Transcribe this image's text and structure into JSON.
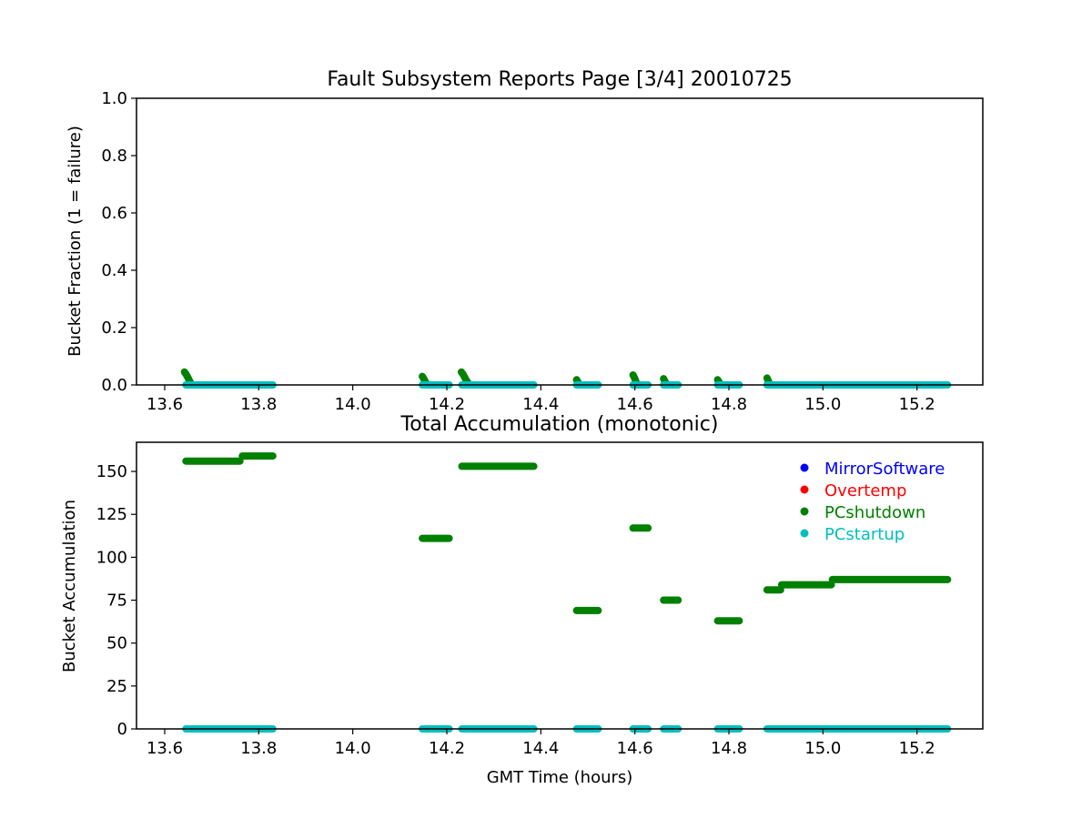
{
  "chart_data": [
    {
      "type": "scatter",
      "title": "Fault Subsystem Reports Page [3/4] 20010725",
      "xlabel": "",
      "ylabel": "Bucket Fraction (1 = failure)",
      "xlim": [
        13.54,
        15.34
      ],
      "ylim": [
        0.0,
        1.0
      ],
      "xticks": [
        13.6,
        13.8,
        14.0,
        14.2,
        14.4,
        14.6,
        14.8,
        15.0,
        15.2
      ],
      "xtick_labels": [
        "13.6",
        "13.8",
        "14.0",
        "14.2",
        "14.4",
        "14.6",
        "14.8",
        "15.0",
        "15.2"
      ],
      "yticks": [
        0.0,
        0.2,
        0.4,
        0.6,
        0.8,
        1.0
      ],
      "ytick_labels": [
        "0.0",
        "0.2",
        "0.4",
        "0.6",
        "0.8",
        "1.0"
      ],
      "grid": false,
      "series": [
        {
          "name": "PCshutdown",
          "color": "#008000",
          "segments": [
            {
              "x": [
                13.642,
                13.645,
                13.648,
                13.651,
                13.654,
                13.658
              ],
              "y": [
                0.045,
                0.038,
                0.03,
                0.02,
                0.01,
                0.0
              ]
            },
            {
              "x": [
                14.148,
                14.151,
                14.154,
                14.158
              ],
              "y": [
                0.03,
                0.022,
                0.012,
                0.0
              ]
            },
            {
              "x": [
                14.231,
                14.234,
                14.237,
                14.24,
                14.244,
                14.248
              ],
              "y": [
                0.045,
                0.038,
                0.03,
                0.02,
                0.01,
                0.0
              ]
            },
            {
              "x": [
                14.476,
                14.479,
                14.482
              ],
              "y": [
                0.018,
                0.01,
                0.0
              ]
            },
            {
              "x": [
                14.596,
                14.599,
                14.602,
                14.606
              ],
              "y": [
                0.035,
                0.025,
                0.012,
                0.0
              ]
            },
            {
              "x": [
                14.661,
                14.664,
                14.668
              ],
              "y": [
                0.022,
                0.012,
                0.0
              ]
            },
            {
              "x": [
                14.776,
                14.779,
                14.782
              ],
              "y": [
                0.018,
                0.01,
                0.0
              ]
            },
            {
              "x": [
                14.881,
                14.884,
                14.888
              ],
              "y": [
                0.024,
                0.013,
                0.0
              ]
            }
          ]
        },
        {
          "name": "PCstartup",
          "color": "#00bfbf",
          "segments": [
            {
              "x": [
                13.645,
                13.83
              ],
              "y": [
                0.0,
                0.0
              ]
            },
            {
              "x": [
                14.148,
                14.205
              ],
              "y": [
                0.0,
                0.0
              ]
            },
            {
              "x": [
                14.232,
                14.385
              ],
              "y": [
                0.0,
                0.0
              ]
            },
            {
              "x": [
                14.476,
                14.522
              ],
              "y": [
                0.0,
                0.0
              ]
            },
            {
              "x": [
                14.596,
                14.628
              ],
              "y": [
                0.0,
                0.0
              ]
            },
            {
              "x": [
                14.661,
                14.692
              ],
              "y": [
                0.0,
                0.0
              ]
            },
            {
              "x": [
                14.776,
                14.822
              ],
              "y": [
                0.0,
                0.0
              ]
            },
            {
              "x": [
                14.881,
                15.265
              ],
              "y": [
                0.0,
                0.0
              ]
            }
          ]
        }
      ]
    },
    {
      "type": "scatter",
      "title": "Total Accumulation (monotonic)",
      "xlabel": "GMT Time (hours)",
      "ylabel": "Bucket Accumulation",
      "xlim": [
        13.54,
        15.34
      ],
      "ylim": [
        0,
        167
      ],
      "xticks": [
        13.6,
        13.8,
        14.0,
        14.2,
        14.4,
        14.6,
        14.8,
        15.0,
        15.2
      ],
      "xtick_labels": [
        "13.6",
        "13.8",
        "14.0",
        "14.2",
        "14.4",
        "14.6",
        "14.8",
        "15.0",
        "15.2"
      ],
      "yticks": [
        0,
        25,
        50,
        75,
        100,
        125,
        150
      ],
      "ytick_labels": [
        "0",
        "25",
        "50",
        "75",
        "100",
        "125",
        "150"
      ],
      "grid": false,
      "legend": "top-right",
      "legend_entries": [
        {
          "name": "MirrorSoftware",
          "color": "#0000ff"
        },
        {
          "name": "Overtemp",
          "color": "#ff0000"
        },
        {
          "name": "PCshutdown",
          "color": "#008000"
        },
        {
          "name": "PCstartup",
          "color": "#00bfbf"
        }
      ],
      "series": [
        {
          "name": "PCshutdown",
          "color": "#008000",
          "segments": [
            {
              "x": [
                13.645,
                13.76
              ],
              "y": [
                156,
                156
              ]
            },
            {
              "x": [
                13.765,
                13.83
              ],
              "y": [
                159,
                159
              ]
            },
            {
              "x": [
                14.148,
                14.205
              ],
              "y": [
                111,
                111
              ]
            },
            {
              "x": [
                14.232,
                14.385
              ],
              "y": [
                153,
                153
              ]
            },
            {
              "x": [
                14.476,
                14.522
              ],
              "y": [
                69,
                69
              ]
            },
            {
              "x": [
                14.596,
                14.628
              ],
              "y": [
                117,
                117
              ]
            },
            {
              "x": [
                14.661,
                14.692
              ],
              "y": [
                75,
                75
              ]
            },
            {
              "x": [
                14.776,
                14.822
              ],
              "y": [
                63,
                63
              ]
            },
            {
              "x": [
                14.881,
                14.91
              ],
              "y": [
                81,
                81
              ]
            },
            {
              "x": [
                14.912,
                15.018
              ],
              "y": [
                84,
                84
              ]
            },
            {
              "x": [
                15.02,
                15.265
              ],
              "y": [
                87,
                87
              ]
            }
          ]
        },
        {
          "name": "PCstartup",
          "color": "#00bfbf",
          "segments": [
            {
              "x": [
                13.645,
                13.83
              ],
              "y": [
                0,
                0
              ]
            },
            {
              "x": [
                14.148,
                14.205
              ],
              "y": [
                0,
                0
              ]
            },
            {
              "x": [
                14.232,
                14.385
              ],
              "y": [
                0,
                0
              ]
            },
            {
              "x": [
                14.476,
                14.522
              ],
              "y": [
                0,
                0
              ]
            },
            {
              "x": [
                14.596,
                14.628
              ],
              "y": [
                0,
                0
              ]
            },
            {
              "x": [
                14.661,
                14.692
              ],
              "y": [
                0,
                0
              ]
            },
            {
              "x": [
                14.776,
                14.822
              ],
              "y": [
                0,
                0
              ]
            },
            {
              "x": [
                14.881,
                15.265
              ],
              "y": [
                0,
                0
              ]
            }
          ]
        }
      ]
    }
  ]
}
